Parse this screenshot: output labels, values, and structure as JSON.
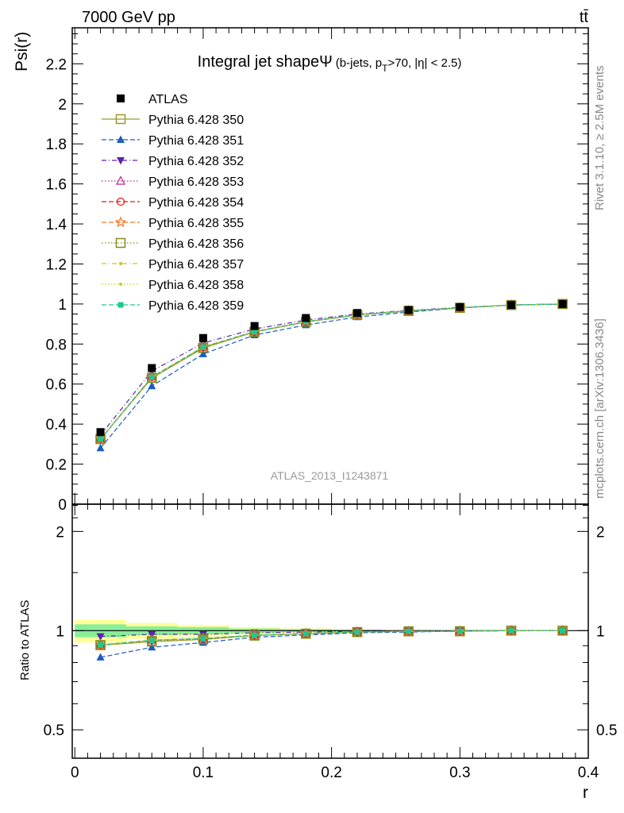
{
  "header": {
    "left": "7000 GeV pp",
    "right": "tt̄"
  },
  "side_text": {
    "rivet": "Rivet 3.1.10, ≥ 2.5M events",
    "mcplots": "mcplots.cern.ch [arXiv:1306.3436]"
  },
  "colors": {
    "ATLAS": "#000000",
    "Pythia 6.428 350": "#9a9a2e",
    "Pythia 6.428 351": "#1c5cc0",
    "Pythia 6.428 352": "#5a22b0",
    "Pythia 6.428 353": "#c0208a",
    "Pythia 6.428 354": "#e01818",
    "Pythia 6.428 355": "#f07820",
    "Pythia 6.428 356": "#8a8a18",
    "Pythia 6.428 357": "#d8c010",
    "Pythia 6.428 358": "#c8d020",
    "Pythia 6.428 359": "#20c890",
    "band_inner": "#88ee99",
    "band_outer": "#ffff99"
  },
  "chart_data": [
    {
      "type": "line",
      "title": "Integral jet shape",
      "title_symbol": "Ψ",
      "subtitle_parts": [
        "(b-jets, p",
        "T",
        ">70, |η| < 2.5)"
      ],
      "ylabel": "Psi(r)",
      "watermark": "ATLAS_2013_I1243871",
      "xlim": [
        -0.002,
        0.4
      ],
      "ylim": [
        0,
        2.38
      ],
      "yticks": [
        0,
        0.2,
        0.4,
        0.6,
        0.8,
        1,
        1.2,
        1.4,
        1.6,
        1.8,
        2,
        2.2
      ],
      "ytick_labels": [
        "0",
        "0.2",
        "0.4",
        "0.6",
        "0.8",
        "1",
        "1.2",
        "1.4",
        "1.6",
        "1.8",
        "2",
        "2.2"
      ],
      "legend_position": "top-left",
      "x": [
        0.02,
        0.06,
        0.1,
        0.14,
        0.18,
        0.22,
        0.26,
        0.3,
        0.34,
        0.38
      ],
      "series": [
        {
          "name": "ATLAS",
          "marker": "filled-square",
          "dash": "none",
          "values": [
            0.36,
            0.68,
            0.83,
            0.89,
            0.93,
            0.955,
            0.97,
            0.985,
            0.995,
            1.0
          ]
        },
        {
          "name": "Pythia 6.428 350",
          "marker": "open-square",
          "dash": "solid",
          "values": [
            0.325,
            0.63,
            0.78,
            0.86,
            0.91,
            0.945,
            0.965,
            0.98,
            0.995,
            1.0
          ]
        },
        {
          "name": "Pythia 6.428 351",
          "marker": "filled-triangle-up",
          "dash": "dashed",
          "values": [
            0.28,
            0.59,
            0.75,
            0.845,
            0.895,
            0.935,
            0.96,
            0.98,
            0.995,
            1.0
          ]
        },
        {
          "name": "Pythia 6.428 352",
          "marker": "filled-triangle-down",
          "dash": "dashdot",
          "values": [
            0.345,
            0.665,
            0.805,
            0.875,
            0.92,
            0.95,
            0.968,
            0.983,
            0.995,
            1.0
          ]
        },
        {
          "name": "Pythia 6.428 353",
          "marker": "open-triangle-up",
          "dash": "dotted",
          "values": [
            0.325,
            0.635,
            0.785,
            0.862,
            0.912,
            0.946,
            0.966,
            0.981,
            0.995,
            1.0
          ]
        },
        {
          "name": "Pythia 6.428 354",
          "marker": "open-circle",
          "dash": "dashed",
          "values": [
            0.325,
            0.635,
            0.785,
            0.862,
            0.912,
            0.946,
            0.966,
            0.981,
            0.995,
            1.0
          ]
        },
        {
          "name": "Pythia 6.428 355",
          "marker": "open-star",
          "dash": "dashed",
          "values": [
            0.325,
            0.635,
            0.785,
            0.862,
            0.912,
            0.946,
            0.966,
            0.981,
            0.995,
            1.0
          ]
        },
        {
          "name": "Pythia 6.428 356",
          "marker": "open-square",
          "dash": "dotted",
          "values": [
            0.325,
            0.632,
            0.782,
            0.861,
            0.911,
            0.946,
            0.966,
            0.981,
            0.995,
            1.0
          ]
        },
        {
          "name": "Pythia 6.428 357",
          "marker": "small-dot",
          "dash": "dashdot",
          "values": [
            0.325,
            0.635,
            0.785,
            0.862,
            0.912,
            0.946,
            0.966,
            0.981,
            0.995,
            1.0
          ]
        },
        {
          "name": "Pythia 6.428 358",
          "marker": "small-dot",
          "dash": "dotted",
          "values": [
            0.325,
            0.635,
            0.785,
            0.862,
            0.912,
            0.946,
            0.966,
            0.981,
            0.995,
            1.0
          ]
        },
        {
          "name": "Pythia 6.428 359",
          "marker": "filled-square-small",
          "dash": "dashed",
          "values": [
            0.325,
            0.635,
            0.785,
            0.862,
            0.912,
            0.946,
            0.966,
            0.981,
            0.995,
            1.0
          ]
        }
      ]
    },
    {
      "type": "line",
      "ylabel": "Ratio to ATLAS",
      "xlabel": "r",
      "xlim": [
        -0.002,
        0.4
      ],
      "ylim": [
        0.41,
        2.42
      ],
      "xticks": [
        0,
        0.1,
        0.2,
        0.3,
        0.4
      ],
      "xtick_labels": [
        "0",
        "0.1",
        "0.2",
        "0.3",
        "0.4"
      ],
      "yticks": [
        0.5,
        1,
        2
      ],
      "ytick_labels": [
        "0.5",
        "1",
        "2"
      ],
      "reference_line": 1,
      "error_bands": {
        "bin_edges": [
          0,
          0.04,
          0.08,
          0.12,
          0.16,
          0.2,
          0.24,
          0.28,
          0.32,
          0.36,
          0.4
        ],
        "inner": [
          [
            0.955,
            1.045
          ],
          [
            0.97,
            1.03
          ],
          [
            0.975,
            1.025
          ],
          [
            0.985,
            1.015
          ],
          [
            0.99,
            1.01
          ],
          [
            0.993,
            1.007
          ],
          [
            0.996,
            1.004
          ],
          [
            0.998,
            1.002
          ],
          [
            0.999,
            1.001
          ],
          [
            0.9995,
            1.0005
          ]
        ],
        "outer": [
          [
            0.92,
            1.08
          ],
          [
            0.945,
            1.055
          ],
          [
            0.96,
            1.04
          ],
          [
            0.975,
            1.025
          ],
          [
            0.985,
            1.015
          ],
          [
            0.99,
            1.01
          ],
          [
            0.994,
            1.006
          ],
          [
            0.997,
            1.003
          ],
          [
            0.998,
            1.002
          ],
          [
            0.999,
            1.001
          ]
        ]
      },
      "x": [
        0.02,
        0.06,
        0.1,
        0.14,
        0.18,
        0.22,
        0.26,
        0.3,
        0.34,
        0.38
      ],
      "series": [
        {
          "name": "Pythia 6.428 350",
          "values": [
            0.903,
            0.926,
            0.94,
            0.966,
            0.978,
            0.99,
            0.995,
            0.995,
            1.0,
            1.0
          ]
        },
        {
          "name": "Pythia 6.428 351",
          "values": [
            0.83,
            0.89,
            0.92,
            0.955,
            0.97,
            0.985,
            0.99,
            0.997,
            1.0,
            1.0
          ]
        },
        {
          "name": "Pythia 6.428 352",
          "values": [
            0.96,
            0.975,
            0.975,
            0.985,
            0.99,
            0.995,
            0.998,
            0.998,
            1.0,
            1.0
          ]
        },
        {
          "name": "Pythia 6.428 353",
          "values": [
            0.905,
            0.935,
            0.947,
            0.968,
            0.98,
            0.991,
            0.995,
            0.996,
            1.0,
            1.0
          ]
        },
        {
          "name": "Pythia 6.428 354",
          "values": [
            0.905,
            0.935,
            0.947,
            0.968,
            0.98,
            0.991,
            0.995,
            0.996,
            1.0,
            1.0
          ]
        },
        {
          "name": "Pythia 6.428 355",
          "values": [
            0.905,
            0.935,
            0.947,
            0.968,
            0.98,
            0.991,
            0.995,
            0.996,
            1.0,
            1.0
          ]
        },
        {
          "name": "Pythia 6.428 356",
          "values": [
            0.904,
            0.93,
            0.942,
            0.967,
            0.979,
            0.99,
            0.995,
            0.996,
            1.0,
            1.0
          ]
        },
        {
          "name": "Pythia 6.428 357",
          "values": [
            0.905,
            0.935,
            0.947,
            0.968,
            0.98,
            0.991,
            0.995,
            0.996,
            1.0,
            1.0
          ]
        },
        {
          "name": "Pythia 6.428 358",
          "values": [
            0.905,
            0.935,
            0.947,
            0.968,
            0.98,
            0.991,
            0.995,
            0.996,
            1.0,
            1.0
          ]
        },
        {
          "name": "Pythia 6.428 359",
          "values": [
            0.905,
            0.935,
            0.947,
            0.968,
            0.98,
            0.991,
            0.995,
            0.996,
            1.0,
            1.0
          ]
        }
      ]
    }
  ]
}
